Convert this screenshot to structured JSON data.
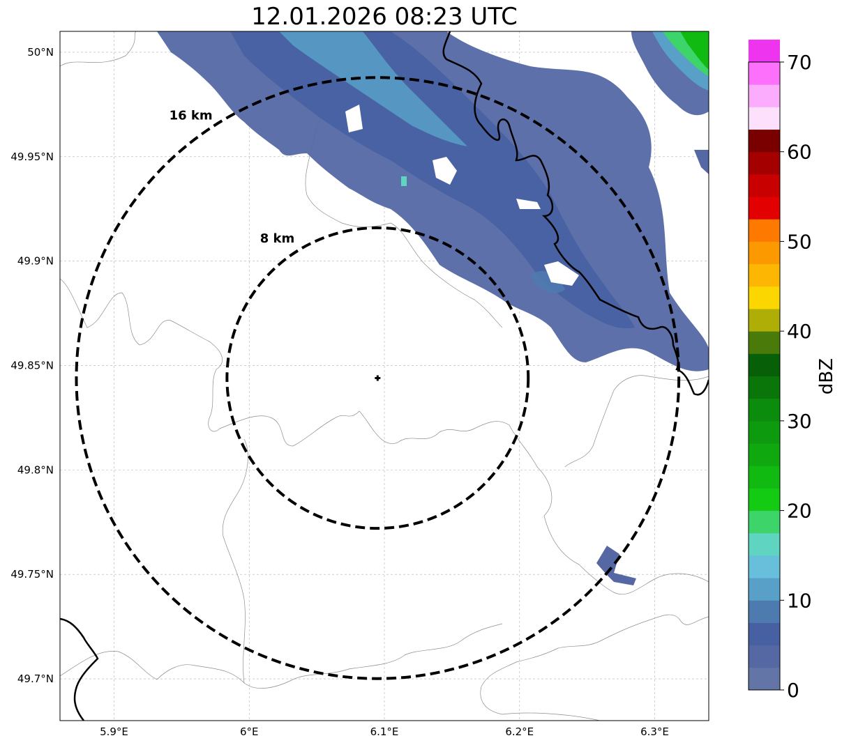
{
  "title": "12.01.2026 08:23 UTC",
  "map": {
    "lon_range": [
      5.86,
      6.34
    ],
    "lat_range": [
      49.68,
      50.01
    ],
    "lon_ticks": [
      {
        "value": 5.9,
        "label": "5.9°E"
      },
      {
        "value": 6.0,
        "label": "6°E"
      },
      {
        "value": 6.1,
        "label": "6.1°E"
      },
      {
        "value": 6.2,
        "label": "6.2°E"
      },
      {
        "value": 6.3,
        "label": "6.3°E"
      }
    ],
    "lat_ticks": [
      {
        "value": 50.0,
        "label": "50°N"
      },
      {
        "value": 49.95,
        "label": "49.95°N"
      },
      {
        "value": 49.9,
        "label": "49.9°N"
      },
      {
        "value": 49.85,
        "label": "49.85°N"
      },
      {
        "value": 49.8,
        "label": "49.8°N"
      },
      {
        "value": 49.75,
        "label": "49.75°N"
      },
      {
        "value": 49.7,
        "label": "49.7°N"
      }
    ],
    "gridlines": true,
    "center": {
      "lon": 6.095,
      "lat": 49.844,
      "marker": "+"
    },
    "range_rings": [
      {
        "label": "8 km",
        "radius_km": 8
      },
      {
        "label": "16 km",
        "radius_km": 16
      }
    ],
    "echo_bands": [
      {
        "name": "main-band",
        "dbz_range": [
          0,
          10
        ]
      },
      {
        "name": "northeast-cell",
        "dbz_range": [
          10,
          30
        ]
      },
      {
        "name": "southeast-cell",
        "dbz_range": [
          0,
          5
        ]
      }
    ]
  },
  "colorbar": {
    "label": "dBZ",
    "min": 0,
    "max": 70,
    "step": 2.5,
    "tick_values": [
      0,
      10,
      20,
      30,
      40,
      50,
      60,
      70
    ],
    "tick_labels": [
      "0",
      "10",
      "20",
      "30",
      "40",
      "50",
      "60",
      "70"
    ],
    "colors": [
      "#6374a7",
      "#5568a4",
      "#4760a2",
      "#4d7bb0",
      "#58a0c8",
      "#67bfdb",
      "#5fd4c1",
      "#3dd46a",
      "#13cb13",
      "#11ba11",
      "#0fa80f",
      "#0e9a0e",
      "#0c8c0c",
      "#0a760a",
      "#075f07",
      "#4a7a0a",
      "#aeae06",
      "#fcd600",
      "#fdb702",
      "#fd9900",
      "#fd7900",
      "#e20000",
      "#c80000",
      "#a40000",
      "#7a0000",
      "#fce0fc",
      "#fcacfc",
      "#fc70fc",
      "#ee34ee"
    ]
  }
}
